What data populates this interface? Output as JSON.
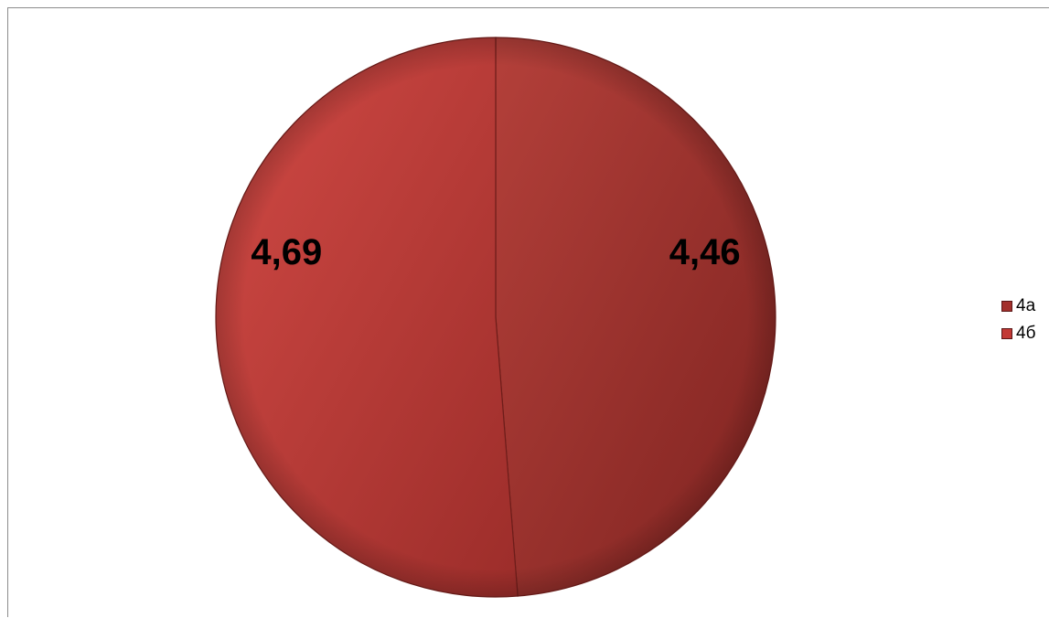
{
  "chart_data": {
    "type": "pie",
    "title": "",
    "categories": [
      "4а",
      "4б"
    ],
    "values": [
      4.46,
      4.69
    ],
    "data_labels": [
      "4,46",
      "4,69"
    ],
    "colors": [
      "#a3302c",
      "#c23935"
    ],
    "legend_position": "right"
  }
}
